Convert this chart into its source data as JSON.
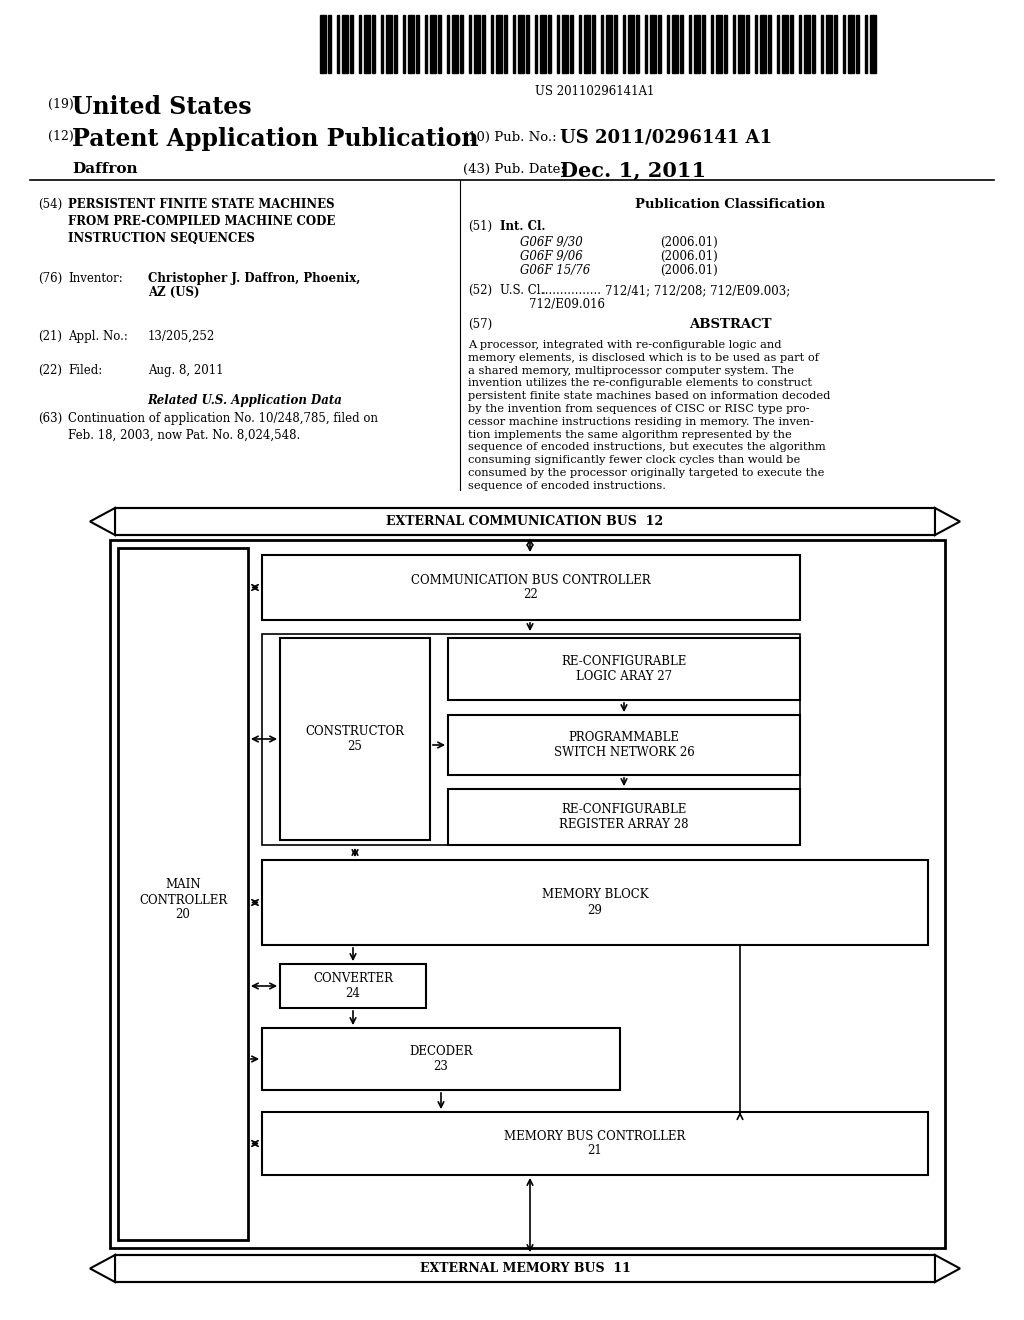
{
  "bg_color": "#ffffff",
  "barcode_text": "US 20110296141A1",
  "header": {
    "country_num": "(19)",
    "country": "United States",
    "type_num": "(12)",
    "type": "Patent Application Publication",
    "inventor": "Daffron",
    "pub_num_label": "(10) Pub. No.:",
    "pub_num": "US 2011/0296141 A1",
    "pub_date_num": "(43) Pub. Date:",
    "pub_date": "Dec. 1, 2011"
  },
  "left_col": {
    "title_num": "(54)",
    "title": "PERSISTENT FINITE STATE MACHINES\nFROM PRE-COMPILED MACHINE CODE\nINSTRUCTION SEQUENCES",
    "inventor_num": "(76)",
    "inventor_label": "Inventor:",
    "inventor_name": "Christopher J. Daffron, Phoenix,",
    "inventor_city": "AZ (US)",
    "appl_num": "(21)",
    "appl_label": "Appl. No.:",
    "appl_val": "13/205,252",
    "filed_num": "(22)",
    "filed_label": "Filed:",
    "filed_val": "Aug. 8, 2011",
    "related_header": "Related U.S. Application Data",
    "related_num": "(63)",
    "related_text": "Continuation of application No. 10/248,785, filed on\nFeb. 18, 2003, now Pat. No. 8,024,548."
  },
  "right_col": {
    "pub_class_header": "Publication Classification",
    "int_cl_num": "(51)",
    "int_cl_label": "Int. Cl.",
    "int_cl_entries": [
      [
        "G06F 9/30",
        "(2006.01)"
      ],
      [
        "G06F 9/06",
        "(2006.01)"
      ],
      [
        "G06F 15/76",
        "(2006.01)"
      ]
    ],
    "us_cl_num": "(52)",
    "us_cl_label": "U.S. Cl.",
    "us_cl_dots": "................",
    "us_cl_val": "712/41; 712/208; 712/E09.003;",
    "us_cl_val2": "712/E09.016",
    "abstract_num": "(57)",
    "abstract_header": "ABSTRACT",
    "abstract_text": "A processor, integrated with re-configurable logic and\nmemory elements, is disclosed which is to be used as part of\na shared memory, multiprocessor computer system. The\ninvention utilizes the re-configurable elements to construct\npersistent finite state machines based on information decoded\nby the invention from sequences of CISC or RISC type pro-\ncessor machine instructions residing in memory. The inven-\ntion implements the same algorithm represented by the\nsequence of encoded instructions, but executes the algorithm\nconsuming significantly fewer clock cycles than would be\nconsumed by the processor originally targeted to execute the\nsequence of encoded instructions."
  },
  "diagram": {
    "ext_comm_bus_label": "EXTERNAL COMMUNICATION BUS  12",
    "ext_mem_bus_label": "EXTERNAL MEMORY BUS  11",
    "main_ctrl_label": "MAIN\nCONTROLLER\n20",
    "comm_bus_ctrl_label": "COMMUNICATION BUS CONTROLLER\n22",
    "constructor_label": "CONSTRUCTOR\n25",
    "recfg_logic_label": "RE-CONFIGURABLE\nLOGIC ARAY 27",
    "prog_switch_label": "PROGRAMMABLE\nSWITCH NETWORK 26",
    "recfg_reg_label": "RE-CONFIGURABLE\nREGISTER ARRAY 28",
    "memory_block_label": "MEMORY BLOCK\n29",
    "converter_label": "CONVERTER\n24",
    "decoder_label": "DECODER\n23",
    "mem_bus_ctrl_label": "MEMORY BUS CONTROLLER\n21"
  }
}
